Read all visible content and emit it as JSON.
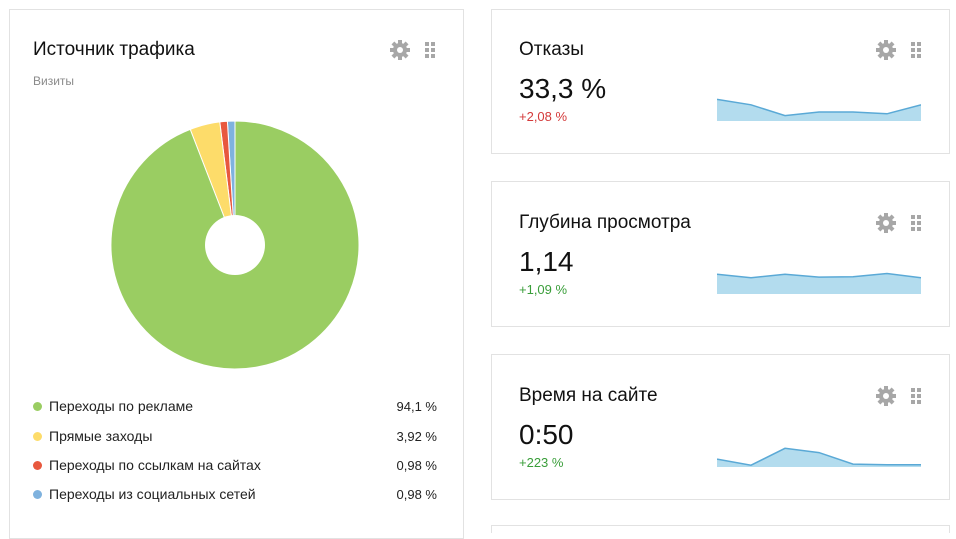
{
  "traffic_widget": {
    "title": "Источник трафика",
    "subtitle": "Визиты",
    "items": [
      {
        "label": "Переходы по рекламе",
        "value": "94,1 %",
        "share": 94.1,
        "color": "#9acd62"
      },
      {
        "label": "Прямые заходы",
        "value": "3,92 %",
        "share": 3.92,
        "color": "#fddc6a"
      },
      {
        "label": "Переходы по ссылкам на сайтах",
        "value": "0,98 %",
        "share": 0.98,
        "color": "#e8583e"
      },
      {
        "label": "Переходы из социальных сетей",
        "value": "0,98 %",
        "share": 0.98,
        "color": "#7fb2de"
      }
    ]
  },
  "metrics": [
    {
      "title": "Отказы",
      "value": "33,3 %",
      "delta": "+2,08 %",
      "delta_color": "#d43a3a",
      "spark": [
        0.6,
        0.45,
        0.15,
        0.25,
        0.25,
        0.2,
        0.45
      ]
    },
    {
      "title": "Глубина просмотра",
      "value": "1,14",
      "delta": "+1,09 %",
      "delta_color": "#3a9e3a",
      "spark": [
        0.55,
        0.45,
        0.55,
        0.47,
        0.48,
        0.57,
        0.45
      ]
    },
    {
      "title": "Время на сайте",
      "value": "0:50",
      "delta": "+223 %",
      "delta_color": "#3a9e3a",
      "spark": [
        0.22,
        0.05,
        0.52,
        0.4,
        0.08,
        0.06,
        0.06
      ]
    }
  ],
  "icons": {
    "settings": "gear-icon",
    "drag": "drag-handle-icon"
  },
  "colors": {
    "sparkline_fill": "#b3dcee",
    "sparkline_stroke": "#5aa9d6",
    "border": "#e2e2e2",
    "tool_icon": "#a7a7a7"
  }
}
